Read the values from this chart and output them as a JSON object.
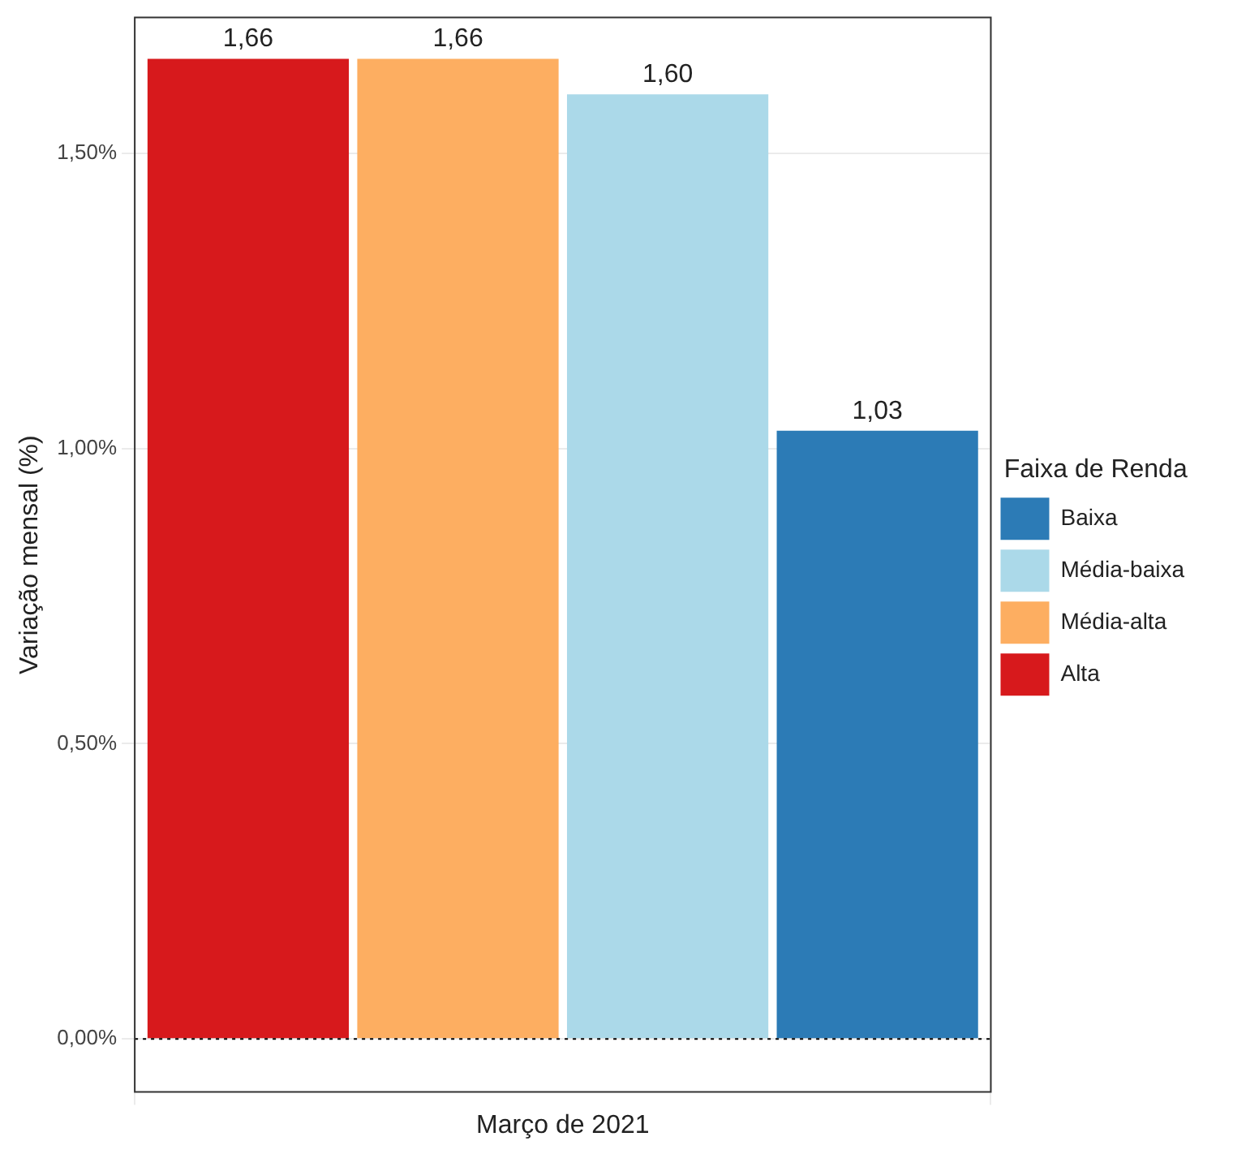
{
  "chart_data": {
    "type": "bar",
    "ylabel": "Variação mensal (%)",
    "legend_title": "Faixa de Renda",
    "categories": [
      "Março de 2021"
    ],
    "series": [
      {
        "name": "Alta",
        "color": "#d7191c",
        "values": [
          1.66
        ],
        "value_labels": [
          "1,66"
        ]
      },
      {
        "name": "Média-alta",
        "color": "#fdae61",
        "values": [
          1.66
        ],
        "value_labels": [
          "1,66"
        ]
      },
      {
        "name": "Média-baixa",
        "color": "#abd9e9",
        "values": [
          1.6
        ],
        "value_labels": [
          "1,60"
        ]
      },
      {
        "name": "Baixa",
        "color": "#2c7bb6",
        "values": [
          1.03
        ],
        "value_labels": [
          "1,03"
        ]
      }
    ],
    "ylim": [
      -0.09,
      1.73
    ],
    "yticks": [
      {
        "value": 0,
        "label": "0,00%"
      },
      {
        "value": 0.5,
        "label": "0,50%"
      },
      {
        "value": 1,
        "label": "1,00%"
      },
      {
        "value": 1.5,
        "label": "1,50%"
      }
    ],
    "ref_lines": [
      {
        "axis": "y",
        "value": 0,
        "label": null,
        "color": "#000000",
        "line_style": "dotted"
      }
    ],
    "grid": true,
    "legend": "right"
  }
}
